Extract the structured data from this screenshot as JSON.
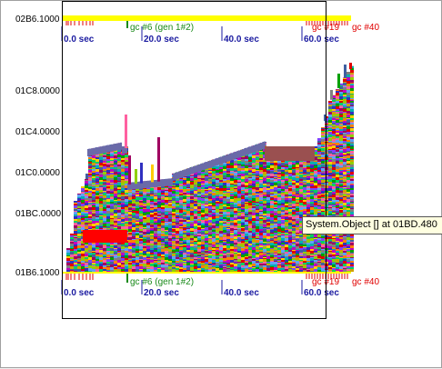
{
  "top_strip": {
    "address_label": "02B6.1000",
    "time_ticks": [
      "0.0 sec",
      "20.0 sec",
      "40.0 sec",
      "60.0 sec"
    ],
    "gc_green": "gc #6 (gen 1#2)",
    "gc_red_1": "gc #19",
    "gc_red_2": "gc #40"
  },
  "heap_plot": {
    "y_labels": [
      "01C8.0000",
      "01C4.0000",
      "01C0.0000",
      "01BC.0000",
      "01B6.1000"
    ],
    "time_ticks": [
      "0.0 sec",
      "20.0 sec",
      "40.0 sec",
      "60.0 sec"
    ],
    "gc_green": "gc #6 (gen 1#2)",
    "gc_red_1": "gc #19",
    "gc_red_2": "gc #40"
  },
  "tooltip": "System.Object [] at 01BD.480",
  "colors": {
    "strip": "#ffff00",
    "gc_green": "#1a8a1a",
    "gc_red": "#e00000",
    "tick_text": "#1a1aa0",
    "tooltip_bg": "#ffffe1"
  }
}
